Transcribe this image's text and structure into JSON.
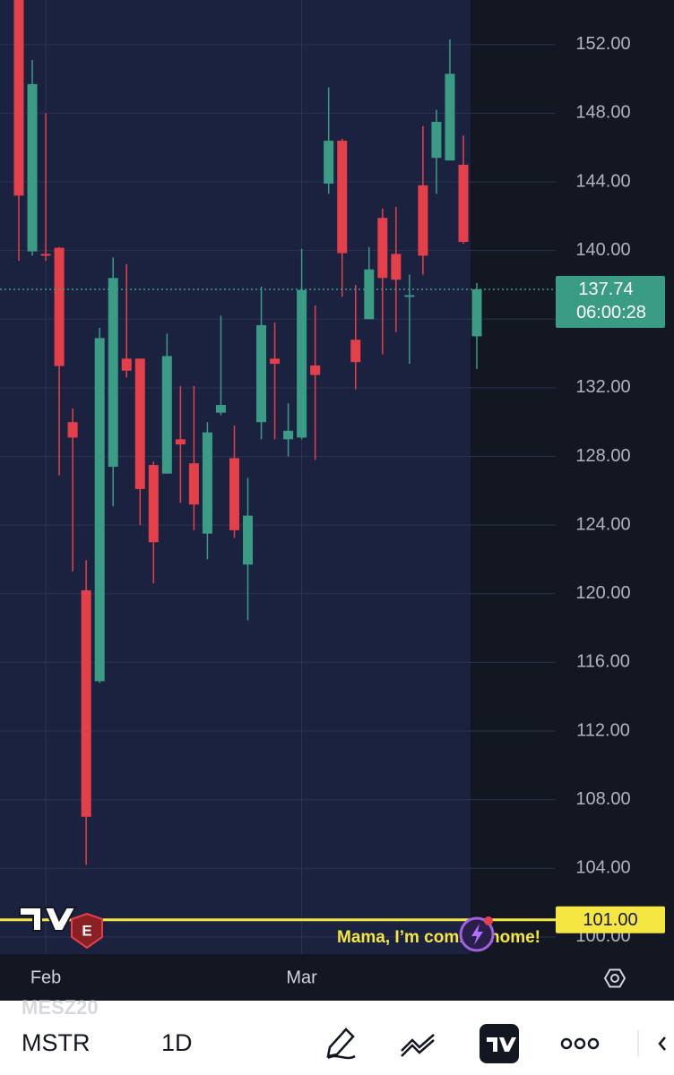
{
  "chart_data": {
    "type": "candlestick",
    "x": [
      null,
      null,
      "Feb",
      null,
      null,
      null,
      null,
      null,
      null,
      null,
      null,
      null,
      null,
      null,
      null,
      null,
      null,
      null,
      null,
      null,
      null,
      "Mar",
      null,
      null,
      null,
      null,
      null,
      null,
      null,
      null,
      null,
      null,
      null,
      null,
      null
    ],
    "open": [
      155.5,
      139.95,
      139.8,
      140.16,
      130.0,
      120.2,
      114.9,
      127.4,
      133.7,
      133.7,
      127.5,
      127.0,
      129.0,
      127.6,
      123.5,
      130.55,
      127.9,
      121.7,
      130.0,
      133.7,
      129.0,
      129.1,
      133.3,
      143.9,
      146.4,
      134.8,
      136.0,
      141.9,
      139.8,
      137.3,
      143.8,
      145.4,
      145.25,
      145.0,
      135.0
    ],
    "high": [
      157,
      151.1,
      148.0,
      140.2,
      130.8,
      121.95,
      135.5,
      139.6,
      139.2,
      133.7,
      127.7,
      135.15,
      132.1,
      132.1,
      130.0,
      136.2,
      129.8,
      126.75,
      137.9,
      135.8,
      131.1,
      140.1,
      136.8,
      149.5,
      146.5,
      138.0,
      140.2,
      142.45,
      142.55,
      138.6,
      147.25,
      148.2,
      152.3,
      146.7,
      138.1
    ],
    "low": [
      139.4,
      139.7,
      139.4,
      126.9,
      121.3,
      104.2,
      114.8,
      125.1,
      132.6,
      124.0,
      120.6,
      127.0,
      125.3,
      123.7,
      122.0,
      130.4,
      123.25,
      118.45,
      129.0,
      129.0,
      128.0,
      129.0,
      127.8,
      143.3,
      137.3,
      131.9,
      136.0,
      133.95,
      135.25,
      133.4,
      138.6,
      143.3,
      145.25,
      140.4,
      133.1
    ],
    "close": [
      143.2,
      149.7,
      139.7,
      133.27,
      129.1,
      107.0,
      134.9,
      138.4,
      133.0,
      126.1,
      123.0,
      133.85,
      128.7,
      125.2,
      129.4,
      131.0,
      123.7,
      124.55,
      135.65,
      133.4,
      129.5,
      137.7,
      132.75,
      146.4,
      139.85,
      133.5,
      138.9,
      138.4,
      138.3,
      137.4,
      139.7,
      147.5,
      150.3,
      140.5,
      137.74
    ],
    "up_color": "#3a9c84",
    "down_color": "#e5404a",
    "ylim": [
      99,
      154.6
    ],
    "yticks": [
      {
        "value": 100,
        "label": "100.00"
      },
      {
        "value": 104,
        "label": "104.00"
      },
      {
        "value": 108,
        "label": "108.00"
      },
      {
        "value": 112,
        "label": "112.00"
      },
      {
        "value": 116,
        "label": "116.00"
      },
      {
        "value": 120,
        "label": "120.00"
      },
      {
        "value": 124,
        "label": "124.00"
      },
      {
        "value": 128,
        "label": "128.00"
      },
      {
        "value": 132,
        "label": "132.00"
      },
      {
        "value": 136,
        "label": "136.00"
      },
      {
        "value": 140,
        "label": "140.00"
      },
      {
        "value": 144,
        "label": "144.00"
      },
      {
        "value": 148,
        "label": "148.00"
      },
      {
        "value": 152,
        "label": "152.00"
      }
    ],
    "grid": true,
    "last_price": {
      "value": 137.74,
      "countdown": "06:00:28"
    },
    "alert_line": {
      "value": 101,
      "label": "101.00"
    },
    "annotation": "Mama, I’m coming home!",
    "earnings_badge": "E"
  },
  "toolbar": {
    "ghost_symbol": "MESZ20",
    "symbol": "MSTR",
    "interval": "1D"
  }
}
